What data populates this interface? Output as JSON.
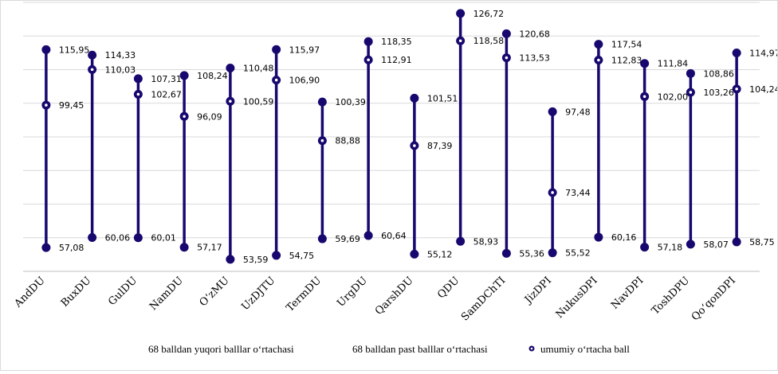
{
  "chart_data": {
    "type": "dumbbell",
    "categories": [
      "AndDU",
      "BuxDU",
      "GulDU",
      "NamDU",
      "O‘zMU",
      "UzDJTU",
      "TermDU",
      "UrgDU",
      "QarshDU",
      "QDU",
      "SamDChTI",
      "JizDPI",
      "NukusDPI",
      "NavDPI",
      "ToshDPU",
      "Qo‘qonDPI"
    ],
    "series": [
      {
        "name": "68 balldan yuqori balllar o‘rtachasi",
        "values": [
          115.95,
          114.33,
          107.31,
          108.24,
          110.48,
          115.97,
          100.39,
          118.35,
          101.51,
          126.72,
          120.68,
          97.48,
          117.54,
          111.84,
          108.86,
          114.97
        ]
      },
      {
        "name": "68 balldan past balllar o‘rtachasi",
        "values": [
          57.08,
          60.06,
          60.01,
          57.17,
          53.59,
          54.75,
          59.69,
          60.64,
          55.12,
          58.93,
          55.36,
          55.52,
          60.16,
          57.18,
          58.07,
          58.75
        ]
      },
      {
        "name": "umumiy o‘rtacha ball",
        "values": [
          99.45,
          110.03,
          102.67,
          96.09,
          100.59,
          106.9,
          88.88,
          112.91,
          87.39,
          118.58,
          113.53,
          73.44,
          112.83,
          102.0,
          103.26,
          104.24
        ]
      }
    ],
    "labels": {
      "high": [
        "115,95",
        "114,33",
        "107,31",
        "108,24",
        "110,48",
        "115,97",
        "100,39",
        "118,35",
        "101,51",
        "126,72",
        "120,68",
        "97,48",
        "117,54",
        "111,84",
        "108,86",
        "114,97"
      ],
      "low": [
        "57,08",
        "60,06",
        "60,01",
        "57,17",
        "53,59",
        "54,75",
        "59,69",
        "60,64",
        "55,12",
        "58,93",
        "55,36",
        "55,52",
        "60,16",
        "57,18",
        "58,07",
        "58,75"
      ],
      "mean": [
        "99,45",
        "110,03",
        "102,67",
        "96,09",
        "100,59",
        "106,90",
        "88,88",
        "112,91",
        "87,39",
        "118,58",
        "113,53",
        "73,44",
        "112,83",
        "102,00",
        "103,26",
        "104,24"
      ]
    },
    "ylim": [
      50,
      130
    ],
    "grid": true,
    "legend_position": "bottom",
    "colors": {
      "series": "#16086e",
      "grid": "#d9d9d9",
      "axis": "#bfbfbf"
    }
  }
}
